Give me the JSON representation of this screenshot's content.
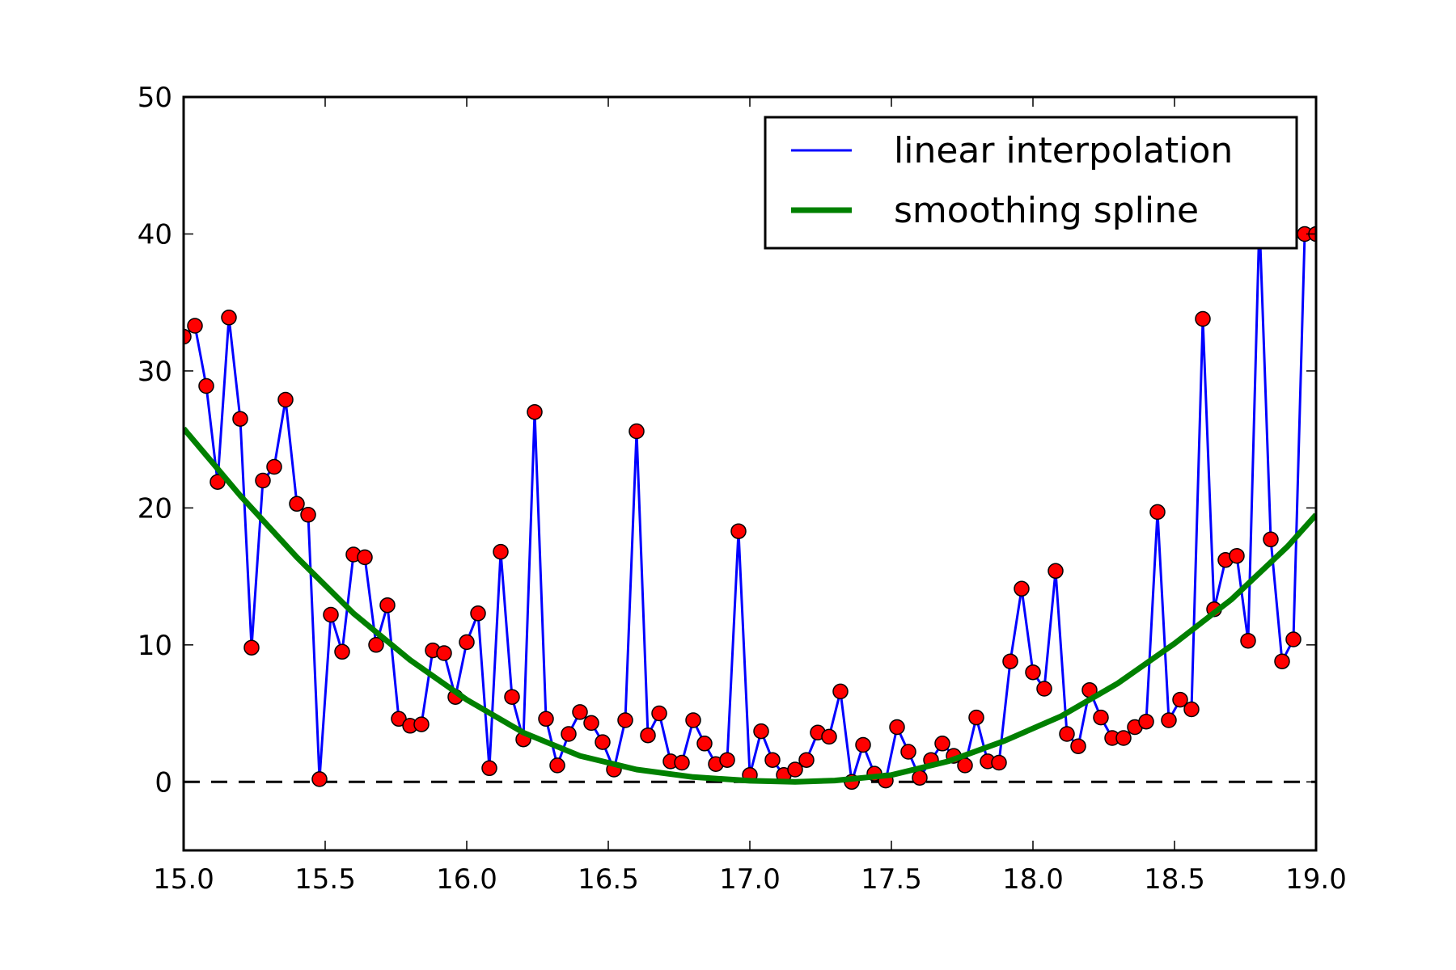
{
  "chart_data": {
    "type": "line",
    "title": "",
    "xlabel": "",
    "ylabel": "",
    "xlim": [
      15.0,
      19.0
    ],
    "ylim": [
      -5,
      50
    ],
    "xticks": [
      15.0,
      15.5,
      16.0,
      16.5,
      17.0,
      17.5,
      18.0,
      18.5,
      19.0
    ],
    "xtick_labels": [
      "15.0",
      "15.5",
      "16.0",
      "16.5",
      "17.0",
      "17.5",
      "18.0",
      "18.5",
      "19.0"
    ],
    "yticks": [
      0,
      10,
      20,
      30,
      40,
      50
    ],
    "ytick_labels": [
      "0",
      "10",
      "20",
      "30",
      "40",
      "50"
    ],
    "grid": false,
    "legend_position": "top-right",
    "reference_line": {
      "y": 0,
      "style": "dashed",
      "color": "#000000"
    },
    "series": [
      {
        "name": "linear interpolation",
        "color": "#0000ff",
        "marker_color": "#ff0000",
        "x": [
          15.0,
          15.04,
          15.08,
          15.12,
          15.16,
          15.2,
          15.24,
          15.28,
          15.32,
          15.36,
          15.4,
          15.44,
          15.48,
          15.52,
          15.56,
          15.6,
          15.64,
          15.68,
          15.72,
          15.76,
          15.8,
          15.84,
          15.88,
          15.92,
          15.96,
          16.0,
          16.04,
          16.08,
          16.12,
          16.16,
          16.2,
          16.24,
          16.28,
          16.32,
          16.36,
          16.4,
          16.44,
          16.48,
          16.52,
          16.56,
          16.6,
          16.64,
          16.68,
          16.72,
          16.76,
          16.8,
          16.84,
          16.88,
          16.92,
          16.96,
          17.0,
          17.04,
          17.08,
          17.12,
          17.16,
          17.2,
          17.24,
          17.28,
          17.32,
          17.36,
          17.4,
          17.44,
          17.48,
          17.52,
          17.56,
          17.6,
          17.64,
          17.68,
          17.72,
          17.76,
          17.8,
          17.84,
          17.88,
          17.92,
          17.96,
          18.0,
          18.04,
          18.08,
          18.12,
          18.16,
          18.2,
          18.24,
          18.28,
          18.32,
          18.36,
          18.4,
          18.44,
          18.48,
          18.52,
          18.56,
          18.6,
          18.64,
          18.68,
          18.72,
          18.76,
          18.8,
          18.84,
          18.88,
          18.92,
          18.96,
          19.0
        ],
        "y": [
          32.5,
          33.3,
          28.9,
          21.9,
          33.9,
          26.5,
          9.8,
          22.0,
          23.0,
          27.9,
          20.3,
          19.5,
          0.2,
          12.2,
          9.5,
          16.6,
          16.4,
          10.0,
          12.9,
          4.6,
          4.1,
          4.2,
          9.6,
          9.4,
          6.2,
          10.2,
          12.3,
          1.0,
          16.8,
          6.2,
          3.1,
          27.0,
          4.6,
          1.2,
          3.5,
          5.1,
          4.3,
          2.9,
          0.9,
          4.5,
          25.6,
          3.4,
          5.0,
          1.5,
          1.4,
          4.5,
          2.8,
          1.3,
          1.6,
          18.3,
          0.5,
          3.7,
          1.6,
          0.5,
          0.9,
          1.6,
          3.6,
          3.3,
          6.6,
          0.0,
          2.7,
          0.6,
          0.1,
          4.0,
          2.2,
          0.3,
          1.6,
          2.8,
          1.9,
          1.2,
          4.7,
          1.5,
          1.4,
          8.8,
          14.1,
          8.0,
          6.8,
          15.4,
          3.5,
          2.6,
          6.7,
          4.7,
          3.2,
          3.2,
          4.0,
          4.4,
          19.7,
          4.5,
          6.0,
          5.3,
          33.8,
          12.6,
          16.2,
          16.5,
          10.3,
          41.0,
          17.7,
          8.8,
          10.4,
          40.0,
          40.0
        ]
      },
      {
        "name": "smoothing spline",
        "color": "#008000",
        "x": [
          15.0,
          15.2,
          15.4,
          15.6,
          15.8,
          16.0,
          16.2,
          16.4,
          16.6,
          16.8,
          17.0,
          17.16,
          17.3,
          17.5,
          17.7,
          17.9,
          18.1,
          18.3,
          18.5,
          18.7,
          18.9,
          19.0
        ],
        "y": [
          25.8,
          20.9,
          16.4,
          12.3,
          8.9,
          6.0,
          3.6,
          1.9,
          0.9,
          0.35,
          0.08,
          0.0,
          0.1,
          0.5,
          1.5,
          3.0,
          4.8,
          7.2,
          10.1,
          13.3,
          17.2,
          19.5
        ]
      }
    ]
  }
}
